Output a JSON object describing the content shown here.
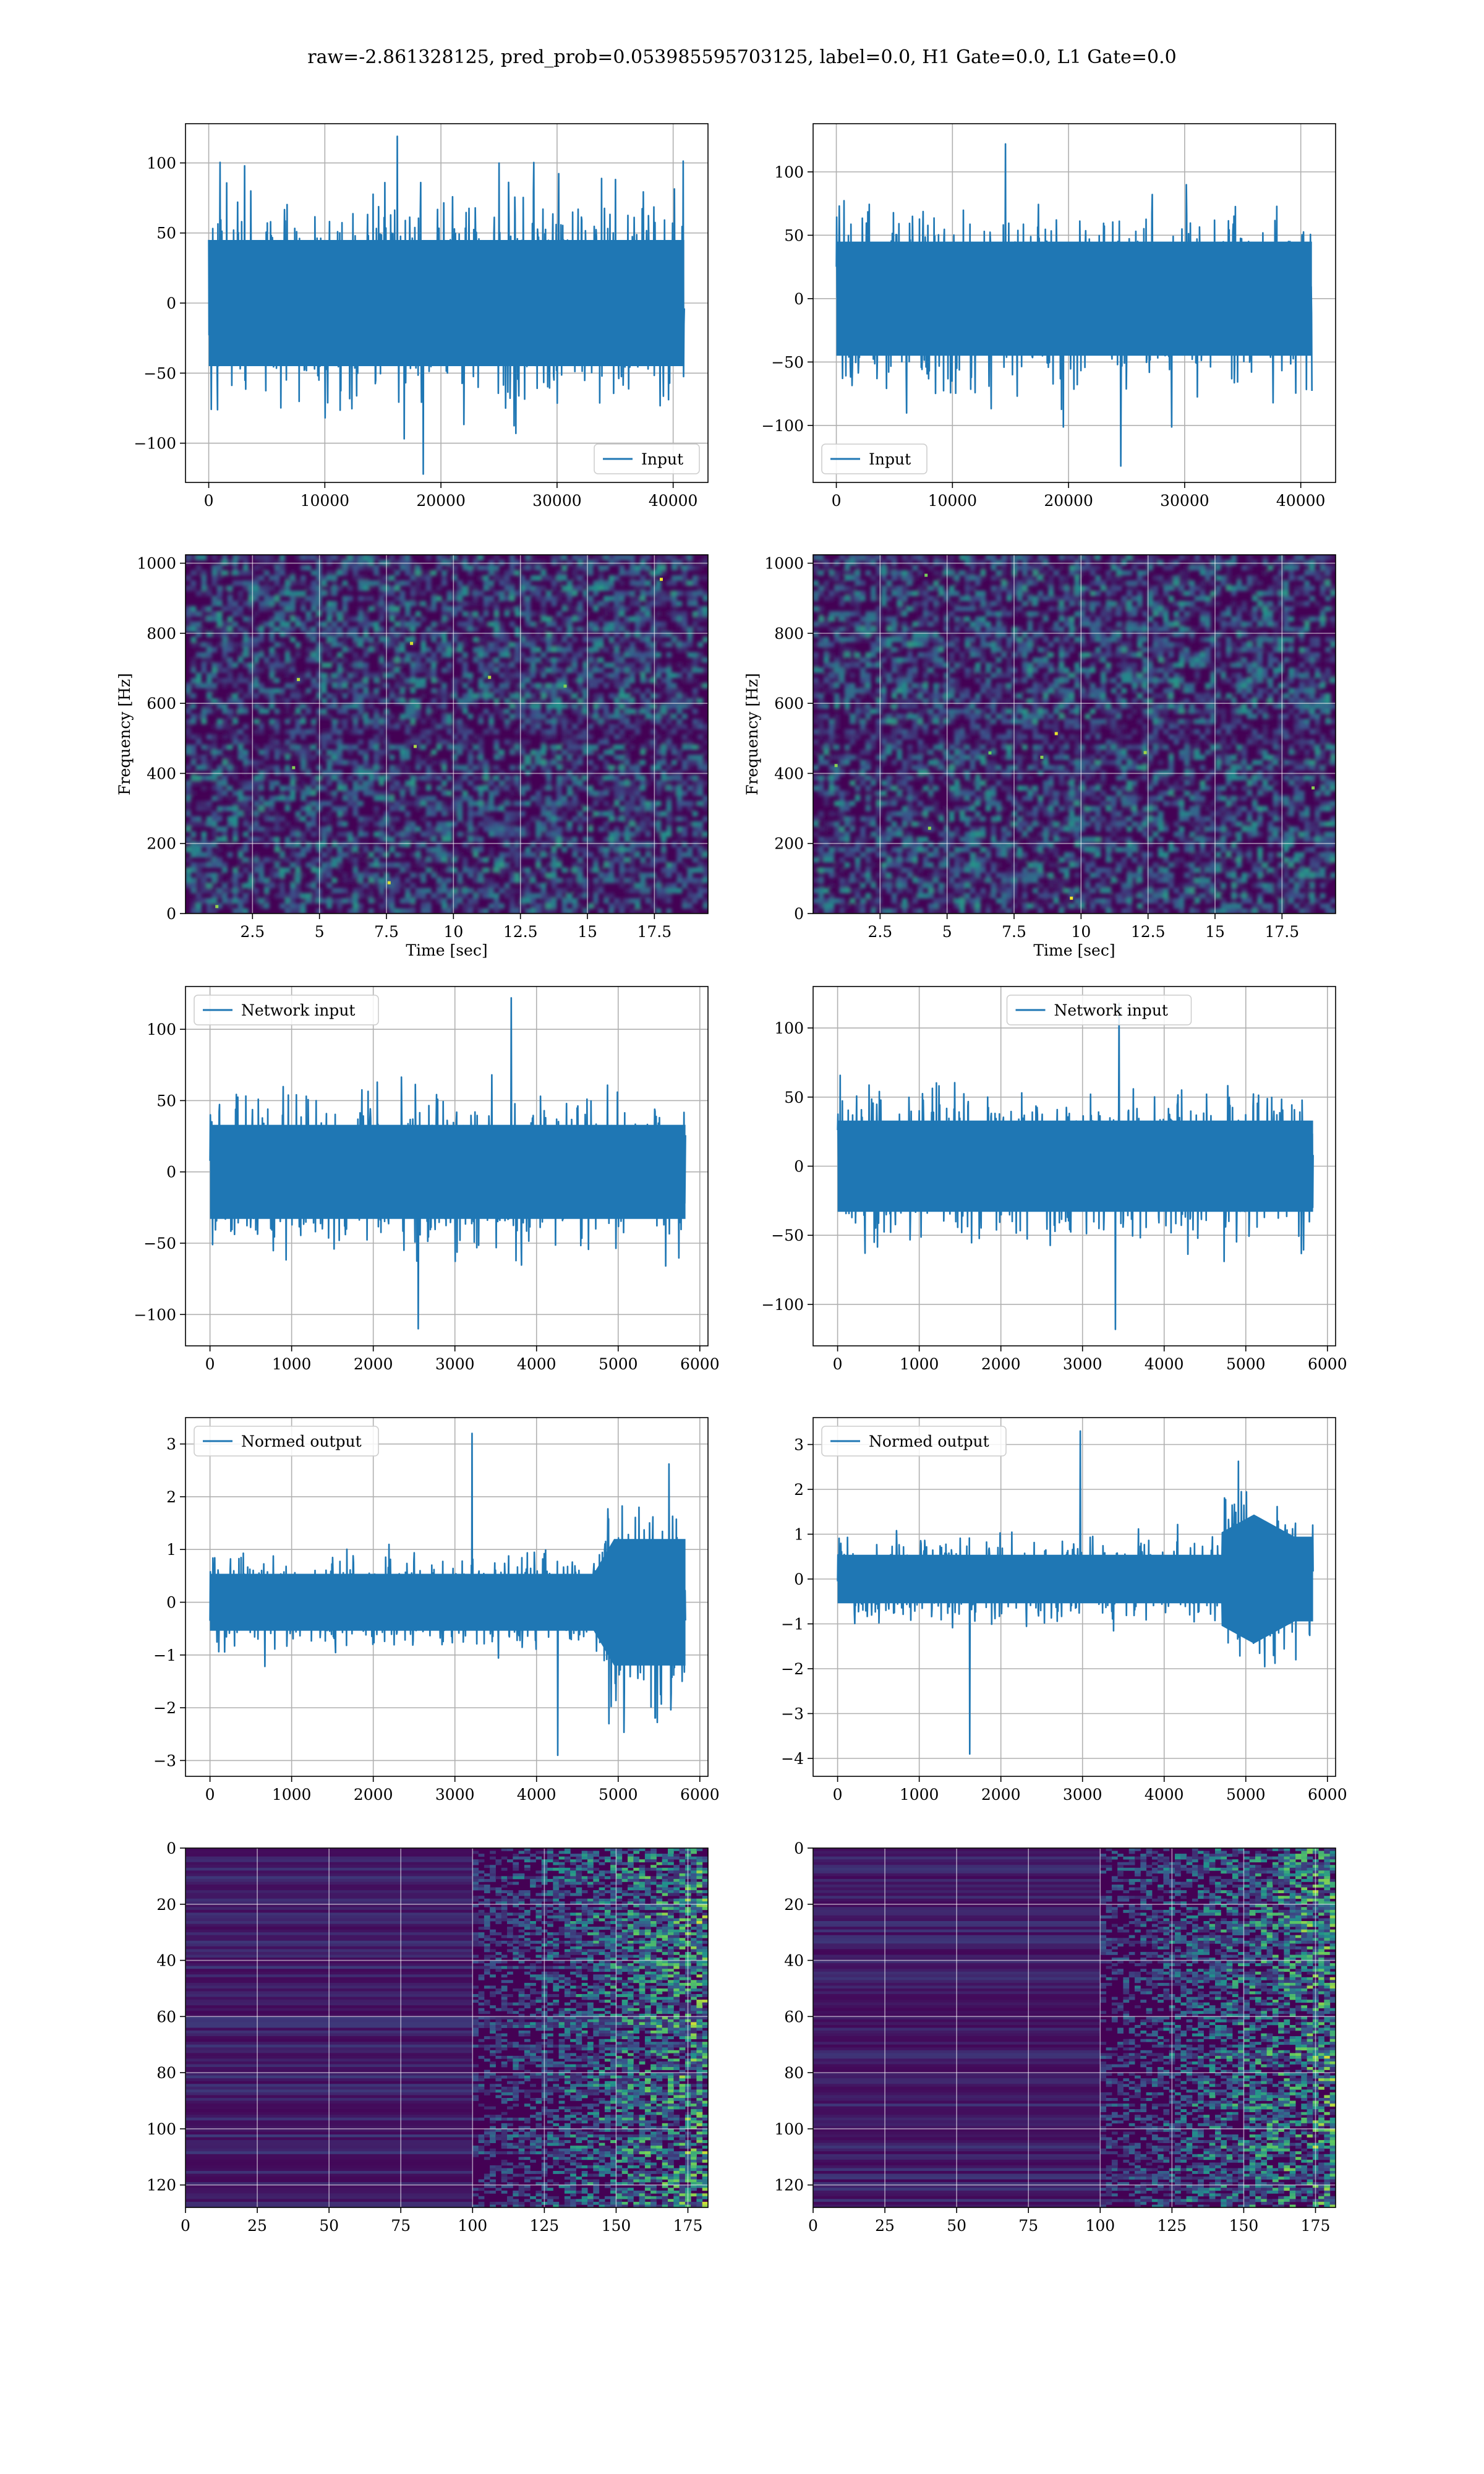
{
  "figure": {
    "suptitle": "raw=-2.861328125, pred_prob=0.053985595703125, label=0.0, H1 Gate=0.0, L1 Gate=0.0"
  },
  "colors": {
    "line": "#1f77b4",
    "grid": "#b0b0b0",
    "viridis_low": "#440154",
    "viridis_mid": "#21918c",
    "viridis_high": "#fde725"
  },
  "chart_data": [
    {
      "id": "input_left",
      "type": "line",
      "row": 0,
      "col": 0,
      "title": "",
      "xlabel": "",
      "ylabel": "",
      "xlim": [
        -2000,
        43000
      ],
      "ylim": [
        -128,
        128
      ],
      "xticks": [
        0,
        10000,
        20000,
        30000,
        40000
      ],
      "yticks": [
        -100,
        -50,
        0,
        50,
        100
      ],
      "legend": "lower right",
      "series": [
        {
          "name": "Input",
          "x_range": [
            0,
            40960
          ],
          "n_points": 40960,
          "envelope": [
            -75,
            75
          ],
          "peak_max": 119,
          "peak_min": -122
        }
      ],
      "grid": true
    },
    {
      "id": "input_right",
      "type": "line",
      "row": 0,
      "col": 1,
      "title": "",
      "xlabel": "",
      "ylabel": "",
      "xlim": [
        -2000,
        43000
      ],
      "ylim": [
        -145,
        138
      ],
      "xticks": [
        0,
        10000,
        20000,
        30000,
        40000
      ],
      "yticks": [
        -100,
        -50,
        0,
        50,
        100
      ],
      "legend": "lower left",
      "series": [
        {
          "name": "Input",
          "x_range": [
            0,
            40960
          ],
          "n_points": 40960,
          "envelope": [
            -75,
            75
          ],
          "peak_max": 122,
          "peak_min": -132
        }
      ],
      "grid": true
    },
    {
      "id": "spectrogram_left",
      "type": "heatmap",
      "row": 1,
      "col": 0,
      "title": "",
      "xlabel": "Time [sec]",
      "ylabel": "Frequency [Hz]",
      "xlim": [
        0,
        19.5
      ],
      "ylim": [
        0,
        1024
      ],
      "xticks": [
        2.5,
        5.0,
        7.5,
        10.0,
        12.5,
        15.0,
        17.5
      ],
      "yticks": [
        0,
        200,
        400,
        600,
        800,
        1000
      ],
      "colormap": "viridis",
      "grid": true
    },
    {
      "id": "spectrogram_right",
      "type": "heatmap",
      "row": 1,
      "col": 1,
      "title": "",
      "xlabel": "Time [sec]",
      "ylabel": "Frequency [Hz]",
      "xlim": [
        0,
        19.5
      ],
      "ylim": [
        0,
        1024
      ],
      "xticks": [
        2.5,
        5.0,
        7.5,
        10.0,
        12.5,
        15.0,
        17.5
      ],
      "yticks": [
        0,
        200,
        400,
        600,
        800,
        1000
      ],
      "colormap": "viridis",
      "grid": true
    },
    {
      "id": "network_left",
      "type": "line",
      "row": 2,
      "col": 0,
      "title": "",
      "xlabel": "",
      "ylabel": "",
      "xlim": [
        -300,
        6100
      ],
      "ylim": [
        -122,
        130
      ],
      "xticks": [
        0,
        1000,
        2000,
        3000,
        4000,
        5000,
        6000
      ],
      "yticks": [
        -100,
        -50,
        0,
        50,
        100
      ],
      "legend": "upper left",
      "series": [
        {
          "name": "Network input",
          "x_range": [
            0,
            5824
          ],
          "n_points": 5824,
          "envelope": [
            -55,
            55
          ],
          "peak_max": 122,
          "peak_min": -110
        }
      ],
      "grid": true
    },
    {
      "id": "network_right",
      "type": "line",
      "row": 2,
      "col": 1,
      "title": "",
      "xlabel": "",
      "ylabel": "",
      "xlim": [
        -300,
        6100
      ],
      "ylim": [
        -130,
        130
      ],
      "xticks": [
        0,
        1000,
        2000,
        3000,
        4000,
        5000,
        6000
      ],
      "yticks": [
        -100,
        -50,
        0,
        50,
        100
      ],
      "legend": "upper center",
      "series": [
        {
          "name": "Network input",
          "x_range": [
            0,
            5824
          ],
          "n_points": 5824,
          "envelope": [
            -55,
            55
          ],
          "peak_max": 118,
          "peak_min": -118
        }
      ],
      "grid": true
    },
    {
      "id": "normed_left",
      "type": "line",
      "row": 3,
      "col": 0,
      "title": "",
      "xlabel": "",
      "ylabel": "",
      "xlim": [
        -300,
        6100
      ],
      "ylim": [
        -3.3,
        3.5
      ],
      "xticks": [
        0,
        1000,
        2000,
        3000,
        4000,
        5000,
        6000
      ],
      "yticks": [
        -3,
        -2,
        -1,
        0,
        1,
        2,
        3
      ],
      "legend": "upper left",
      "series": [
        {
          "name": "Normed output",
          "x_range": [
            0,
            5824
          ],
          "n_points": 5824,
          "envelope": [
            -0.9,
            0.9
          ],
          "burst_start": 4700,
          "burst_envelope": [
            -2.0,
            2.0
          ],
          "peak_max": 3.2,
          "peak_min": -2.9
        }
      ],
      "grid": true
    },
    {
      "id": "normed_right",
      "type": "line",
      "row": 3,
      "col": 1,
      "title": "",
      "xlabel": "",
      "ylabel": "",
      "xlim": [
        -300,
        6100
      ],
      "ylim": [
        -4.4,
        3.6
      ],
      "xticks": [
        0,
        1000,
        2000,
        3000,
        4000,
        5000,
        6000
      ],
      "yticks": [
        -4,
        -3,
        -2,
        -1,
        0,
        1,
        2,
        3
      ],
      "legend": "upper left",
      "series": [
        {
          "name": "Normed output",
          "x_range": [
            0,
            5824
          ],
          "n_points": 5824,
          "envelope": [
            -0.9,
            0.9
          ],
          "burst_start": 4700,
          "burst_center": 5100,
          "burst_envelope": [
            -2.4,
            2.4
          ],
          "peak_max": 3.3,
          "peak_min": -3.9
        }
      ],
      "grid": true
    },
    {
      "id": "features_left",
      "type": "heatmap",
      "row": 4,
      "col": 0,
      "title": "",
      "xlabel": "",
      "ylabel": "",
      "xlim": [
        0,
        182
      ],
      "ylim": [
        128,
        0
      ],
      "xticks": [
        0,
        25,
        50,
        75,
        100,
        125,
        150,
        175
      ],
      "yticks": [
        0,
        20,
        40,
        60,
        80,
        100,
        120
      ],
      "colormap": "viridis",
      "activity_from": 100,
      "grid": true
    },
    {
      "id": "features_right",
      "type": "heatmap",
      "row": 4,
      "col": 1,
      "title": "",
      "xlabel": "",
      "ylabel": "",
      "xlim": [
        0,
        182
      ],
      "ylim": [
        128,
        0
      ],
      "xticks": [
        0,
        25,
        50,
        75,
        100,
        125,
        150,
        175
      ],
      "yticks": [
        0,
        20,
        40,
        60,
        80,
        100,
        120
      ],
      "colormap": "viridis",
      "activity_from": 100,
      "grid": true
    }
  ]
}
